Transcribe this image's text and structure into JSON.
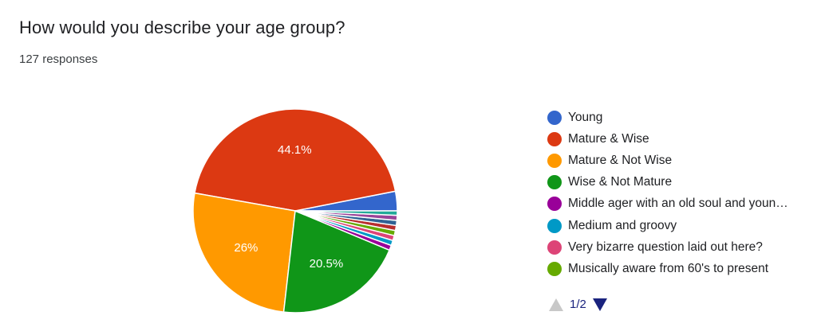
{
  "header": {
    "title": "How would you describe your age group?",
    "responses": "127 responses"
  },
  "chart_data": {
    "type": "pie",
    "start_angle_deg": 0,
    "direction": "counterclockwise",
    "slices": [
      {
        "label": "Young",
        "value": 3.1,
        "display": "",
        "color": "#3366cc"
      },
      {
        "label": "Mature & Wise",
        "value": 44.1,
        "display": "44.1%",
        "color": "#dc3912"
      },
      {
        "label": "Mature & Not Wise",
        "value": 26.0,
        "display": "26%",
        "color": "#ff9900"
      },
      {
        "label": "Wise & Not Mature",
        "value": 20.5,
        "display": "20.5%",
        "color": "#109618"
      },
      {
        "label": "Middle ager with an old soul and youn…",
        "value": 0.8,
        "display": "",
        "color": "#990099"
      },
      {
        "label": "Medium and groovy",
        "value": 0.8,
        "display": "",
        "color": "#0099c6"
      },
      {
        "label": "Very bizarre question laid out here?",
        "value": 0.8,
        "display": "",
        "color": "#dd4477"
      },
      {
        "label": "Musically aware from 60's to present",
        "value": 0.8,
        "display": "",
        "color": "#66aa00"
      },
      {
        "value": 0.8,
        "display": "",
        "color": "#b82e2e"
      },
      {
        "value": 0.8,
        "display": "",
        "color": "#316395"
      },
      {
        "value": 0.8,
        "display": "",
        "color": "#994499"
      },
      {
        "value": 0.7,
        "display": "",
        "color": "#22aa99"
      }
    ],
    "legend_position": "right"
  },
  "legend": {
    "items": [
      {
        "label": "Young",
        "color": "#3366cc"
      },
      {
        "label": "Mature & Wise",
        "color": "#dc3912"
      },
      {
        "label": "Mature & Not Wise",
        "color": "#ff9900"
      },
      {
        "label": "Wise & Not Mature",
        "color": "#109618"
      },
      {
        "label": "Middle ager with an old soul and youn…",
        "color": "#990099"
      },
      {
        "label": "Medium and groovy",
        "color": "#0099c6"
      },
      {
        "label": "Very bizarre question laid out here?",
        "color": "#dd4477"
      },
      {
        "label": "Musically aware from 60's to present",
        "color": "#66aa00"
      }
    ]
  },
  "pager": {
    "page": "1/2"
  }
}
